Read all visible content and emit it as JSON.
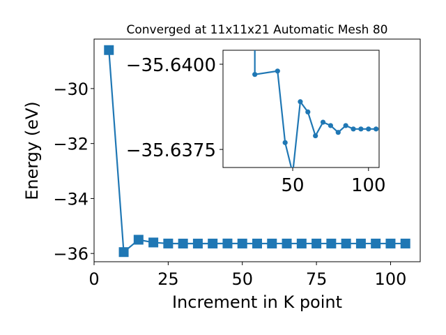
{
  "chart_data": [
    {
      "type": "line",
      "title": "Converged at 11x11x21 Automatic Mesh 80",
      "xlabel": "Increment in K point",
      "ylabel": "Energy (eV)",
      "xlim": [
        0,
        110
      ],
      "ylim": [
        -36.3,
        -28.2
      ],
      "xticks": [
        0,
        25,
        50,
        75,
        100
      ],
      "xtick_labels": [
        "0",
        "25",
        "50",
        "75",
        "100"
      ],
      "yticks": [
        -30,
        -32,
        -34,
        -36
      ],
      "ytick_labels": [
        "−30",
        "−32",
        "−34",
        "−36"
      ],
      "marker": "square",
      "color": "#1f77b4",
      "grid": false,
      "legend": "none",
      "x": [
        5,
        10,
        15,
        20,
        25,
        30,
        35,
        40,
        45,
        50,
        55,
        60,
        65,
        70,
        75,
        80,
        85,
        90,
        95,
        100,
        105
      ],
      "y": [
        -28.6,
        -35.95,
        -35.5,
        -35.6,
        -35.638,
        -35.6401,
        -35.6401,
        -35.6389,
        -35.6368,
        -35.6388,
        -35.6391,
        -35.6387,
        -35.6385,
        -35.6386,
        -35.6386,
        -35.6385,
        -35.6386,
        -35.6386,
        -35.6386,
        -35.6385,
        -35.6386
      ]
    },
    {
      "type": "line",
      "inset": true,
      "xlim": [
        4,
        107
      ],
      "ylim": [
        -35.63697,
        -35.64041
      ],
      "xticks": [
        50,
        100
      ],
      "xtick_labels": [
        "50",
        "100"
      ],
      "yticks": [
        -35.64,
        -35.6375
      ],
      "ytick_labels": [
        "−35.6400",
        "−35.6375"
      ],
      "marker": "circle",
      "color": "#1f77b4",
      "grid": false,
      "x": [
        25,
        40,
        45,
        50,
        55,
        60,
        65,
        70,
        75,
        80,
        85,
        90,
        95,
        100,
        105
      ],
      "y": [
        -35.6397,
        -35.6398,
        -35.6377,
        -35.6368,
        -35.6389,
        -35.6386,
        -35.6379,
        -35.6383,
        -35.6382,
        -35.638,
        -35.6382,
        -35.6381,
        -35.6381,
        -35.6381,
        -35.6381
      ],
      "x_start_off_axis": 25
    }
  ]
}
